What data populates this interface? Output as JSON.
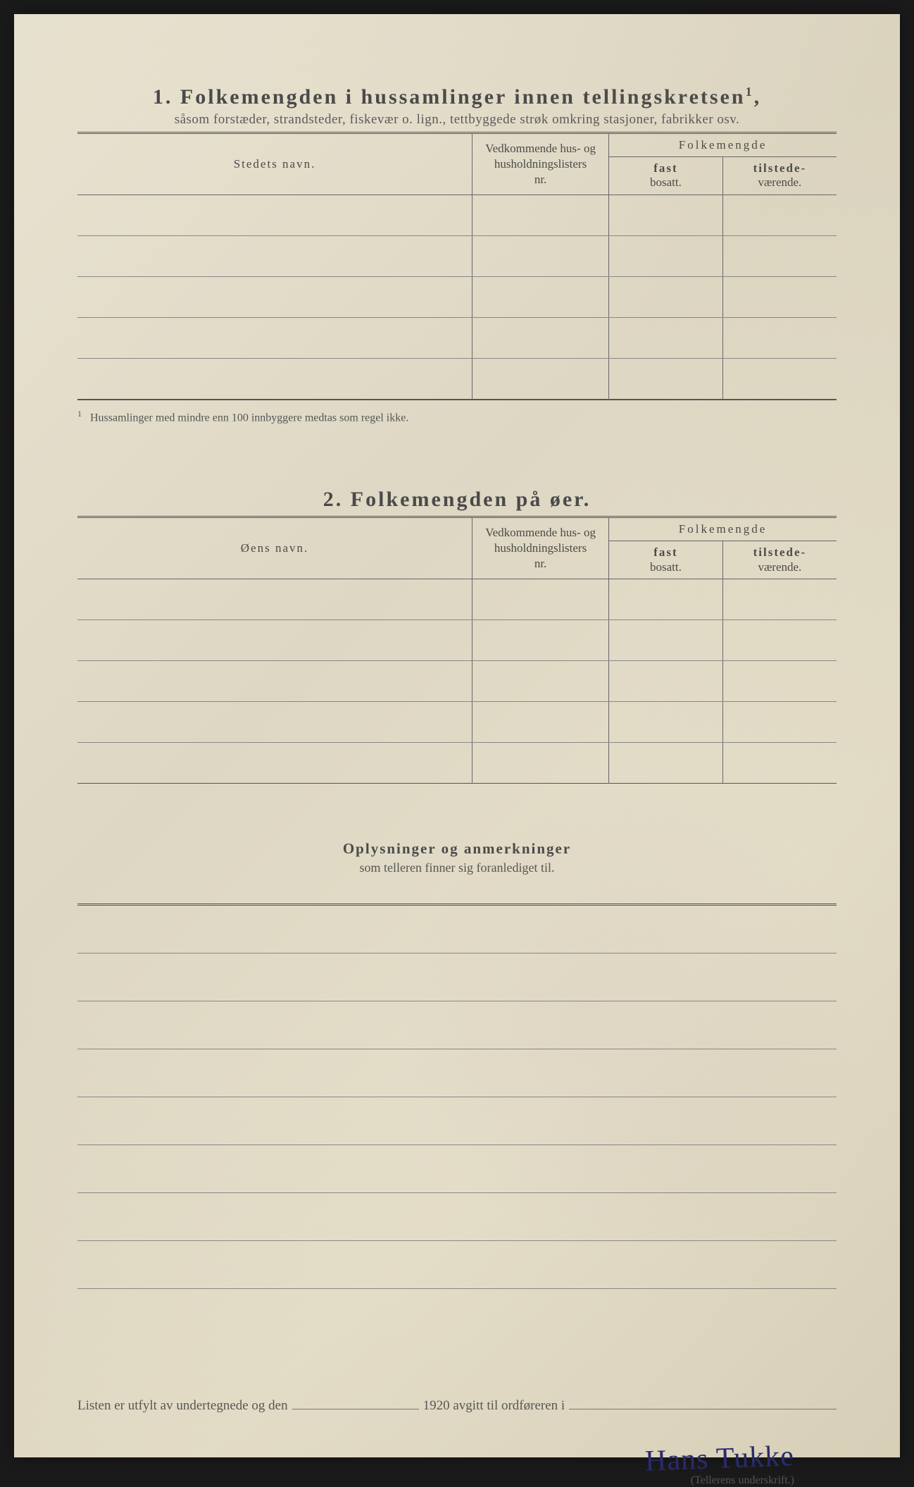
{
  "section1": {
    "number": "1.",
    "title": "Folkemengden i hussamlinger innen tellingskretsen",
    "title_sup": "1",
    "subtitle": "såsom forstæder, strandsteder, fiskevær o. lign., tettbyggede strøk omkring stasjoner, fabrikker osv.",
    "headers": {
      "name": "Stedets navn.",
      "nr_line1": "Vedkommende hus- og",
      "nr_line2": "husholdningslisters",
      "nr_line3": "nr.",
      "pop": "Folkemengde",
      "fast_bold": "fast",
      "fast_sub": "bosatt.",
      "til_bold": "tilstede-",
      "til_sub": "værende."
    },
    "row_count": 5,
    "footnote_mark": "1",
    "footnote": "Hussamlinger med mindre enn 100 innbyggere medtas som regel ikke."
  },
  "section2": {
    "number": "2.",
    "title": "Folkemengden på øer.",
    "headers": {
      "name": "Øens navn.",
      "nr_line1": "Vedkommende hus- og",
      "nr_line2": "husholdningslisters",
      "nr_line3": "nr.",
      "pop": "Folkemengde",
      "fast_bold": "fast",
      "fast_sub": "bosatt.",
      "til_bold": "tilstede-",
      "til_sub": "værende."
    },
    "row_count": 5
  },
  "remarks": {
    "title1": "Oplysninger og anmerkninger",
    "title2": "som telleren finner sig foranlediget til.",
    "line_count": 8
  },
  "bottom": {
    "text1": "Listen er utfylt av undertegnede og den",
    "year": "1920",
    "text2": "avgitt til ordføreren i"
  },
  "signature": {
    "text": "Hans Tukke",
    "label": "(Tellerens underskrift.)"
  },
  "colors": {
    "paper": "#e5dec9",
    "ink": "#4a4a4a",
    "rule": "#666",
    "signature_ink": "#2a2a6a"
  }
}
